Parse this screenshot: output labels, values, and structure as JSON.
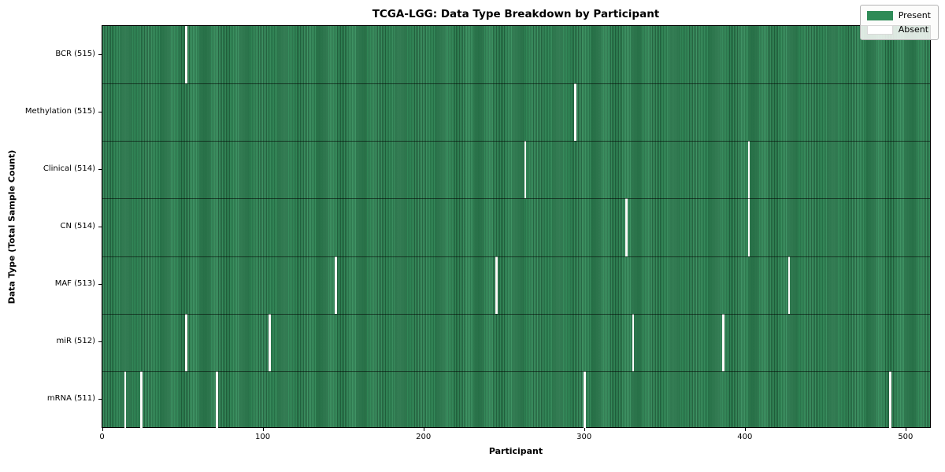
{
  "chart_data": {
    "type": "heatmap",
    "title": "TCGA-LGG: Data Type Breakdown by Participant",
    "xlabel": "Participant",
    "ylabel": "Data Type (Total Sample Count)",
    "x_ticks": [
      0,
      100,
      200,
      300,
      400,
      500
    ],
    "x_range": [
      -0.5,
      515.5
    ],
    "n_participants": 516,
    "grid": false,
    "legend": {
      "position": "upper right",
      "present_label": "Present",
      "absent_label": "Absent"
    },
    "colors": {
      "present": "#2e8b57",
      "absent": "#ffffff"
    },
    "rows": [
      {
        "label": "BCR (515)",
        "total": 515,
        "absent_participants": [
          52
        ]
      },
      {
        "label": "Methylation (515)",
        "total": 515,
        "absent_participants": [
          294
        ]
      },
      {
        "label": "Clinical (514)",
        "total": 514,
        "absent_participants": [
          263,
          402
        ]
      },
      {
        "label": "CN (514)",
        "total": 514,
        "absent_participants": [
          326,
          402
        ]
      },
      {
        "label": "MAF (513)",
        "total": 513,
        "absent_participants": [
          145,
          245,
          427
        ]
      },
      {
        "label": "miR (512)",
        "total": 512,
        "absent_participants": [
          52,
          104,
          330,
          386
        ]
      },
      {
        "label": "mRNA (511)",
        "total": 511,
        "absent_participants": [
          14,
          24,
          71,
          300,
          490
        ]
      }
    ]
  }
}
